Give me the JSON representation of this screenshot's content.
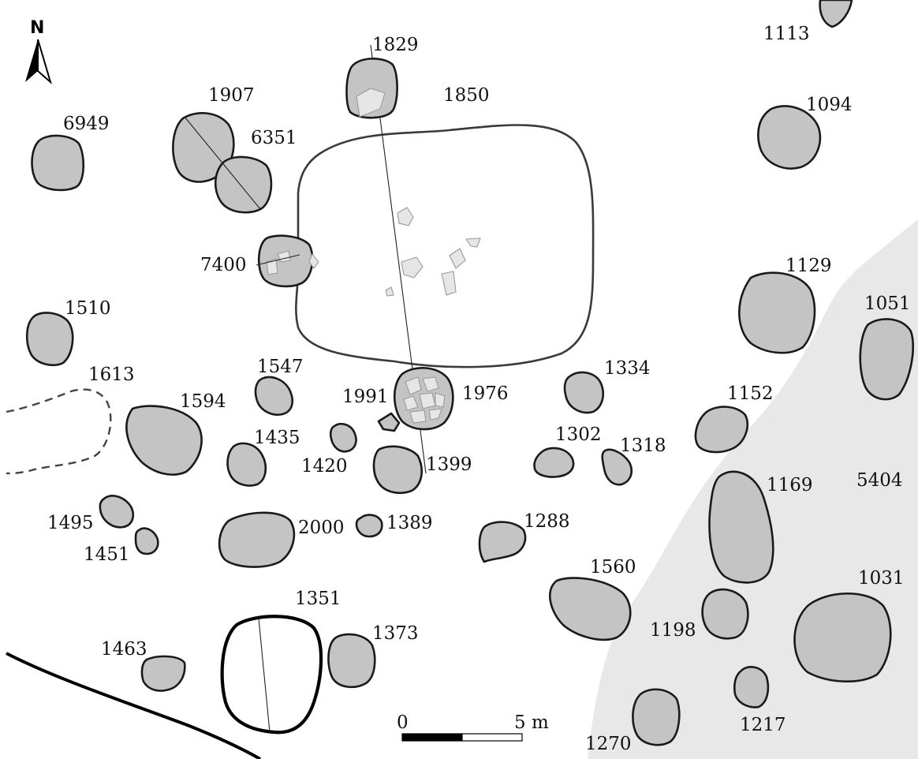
{
  "map": {
    "north_label": "N",
    "colors": {
      "pit_fill": "#c4c4c4",
      "pit_stroke": "#1a1a1a",
      "zone_fill": "#e8e8e8",
      "paper": "#ffffff"
    },
    "features": {
      "f1113": "1113",
      "f1829": "1829",
      "f1850": "1850",
      "f1907": "1907",
      "f6351": "6351",
      "f6949": "6949",
      "f1094": "1094",
      "f7400": "7400",
      "f1129": "1129",
      "f1051": "1051",
      "f1510": "1510",
      "f1613": "1613",
      "f1547": "1547",
      "f1594": "1594",
      "f1991": "1991",
      "f1976": "1976",
      "f1334": "1334",
      "f1152": "1152",
      "f1435": "1435",
      "f1420": "1420",
      "f1399": "1399",
      "f1302": "1302",
      "f1318": "1318",
      "f1169": "1169",
      "f5404": "5404",
      "f1495": "1495",
      "f1451": "1451",
      "f2000": "2000",
      "f1389": "1389",
      "f1288": "1288",
      "f1560": "1560",
      "f1031": "1031",
      "f1351": "1351",
      "f1373": "1373",
      "f1198": "1198",
      "f1463": "1463",
      "f1217": "1217",
      "f1270": "1270"
    },
    "scale_bar": {
      "start_label": "0",
      "end_label": "5 m"
    }
  }
}
